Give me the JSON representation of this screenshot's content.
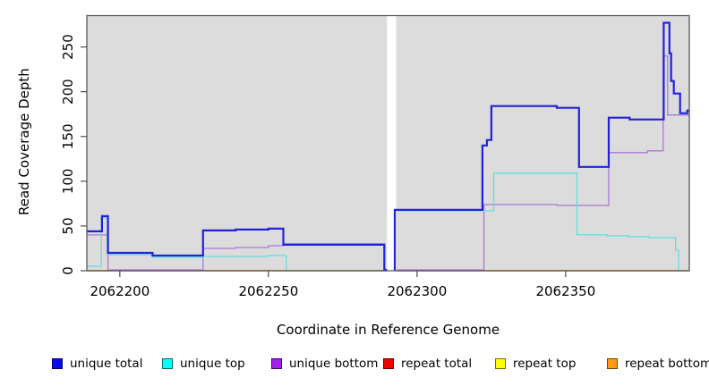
{
  "chart_data": {
    "type": "line",
    "style": "step-coverage-plot",
    "xlabel": "Coordinate in Reference Genome",
    "ylabel": "Read Coverage Depth",
    "xlim": [
      2062188.9,
      2062391.6
    ],
    "ylim": [
      0,
      285
    ],
    "x_ticks": [
      2062200,
      2062250,
      2062300,
      2062350
    ],
    "x_tick_labels": [
      "2062200",
      "2062250",
      "2062300",
      "2062350"
    ],
    "y_ticks": [
      0,
      50,
      100,
      150,
      200,
      250
    ],
    "y_tick_labels": [
      "0",
      "50",
      "100",
      "150",
      "200",
      "250"
    ],
    "grid": false,
    "plot_background": "#DCDCDC",
    "gap_region": {
      "x_start": 2062289.9,
      "x_end": 2062293.0,
      "color": "#FFFFFF"
    },
    "series": [
      {
        "name": "repeat total",
        "color": "#CC3355",
        "width": 1.3,
        "segments": [
          [
            [
              2062188.9,
              0
            ],
            [
              2062289.9,
              0
            ]
          ],
          [
            [
              2062293.1,
              0
            ],
            [
              2062391.6,
              0
            ]
          ]
        ]
      },
      {
        "name": "repeat top",
        "color": "#EEE800",
        "width": 1.3,
        "segments": [
          [
            [
              2062188.9,
              0
            ],
            [
              2062289.9,
              0
            ]
          ],
          [
            [
              2062293.1,
              0
            ],
            [
              2062391.6,
              0
            ]
          ]
        ]
      },
      {
        "name": "repeat bottom",
        "color": "#FF9D20",
        "width": 1.3,
        "segments": [
          [
            [
              2062188.9,
              0
            ],
            [
              2062289.9,
              0
            ]
          ],
          [
            [
              2062293.1,
              0
            ],
            [
              2062391.6,
              0
            ]
          ]
        ]
      },
      {
        "name": "unique bottom",
        "color": "#AA77D8",
        "width": 1.3,
        "segments": [
          [
            [
              2062188.9,
              40
            ],
            [
              2062196,
              40
            ],
            [
              2062196,
              1
            ],
            [
              2062228,
              1
            ],
            [
              2062228,
              25
            ],
            [
              2062239,
              25
            ],
            [
              2062239,
              26
            ],
            [
              2062250,
              26
            ],
            [
              2062250,
              28
            ],
            [
              2062255,
              28
            ],
            [
              2062255,
              30
            ],
            [
              2062289,
              30
            ],
            [
              2062289,
              0
            ],
            [
              2062289.9,
              0
            ]
          ],
          [
            [
              2062293.1,
              1
            ],
            [
              2062322.5,
              1
            ],
            [
              2062322.5,
              74
            ],
            [
              2062347,
              74
            ],
            [
              2062347,
              73
            ],
            [
              2062364.5,
              73
            ],
            [
              2062364.5,
              132
            ],
            [
              2062377.5,
              132
            ],
            [
              2062377.5,
              134
            ],
            [
              2062382.8,
              134
            ],
            [
              2062382.8,
              240
            ],
            [
              2062384.3,
              240
            ],
            [
              2062384.3,
              174
            ],
            [
              2062391.6,
              174
            ]
          ]
        ]
      },
      {
        "name": "unique top",
        "color": "#5FE0E0",
        "width": 1.3,
        "segments": [
          [
            [
              2062188.9,
              5
            ],
            [
              2062193.8,
              5
            ],
            [
              2062193.8,
              59
            ],
            [
              2062195.8,
              59
            ],
            [
              2062195.8,
              18
            ],
            [
              2062211,
              18
            ],
            [
              2062211,
              15
            ],
            [
              2062228,
              15
            ],
            [
              2062228,
              16
            ],
            [
              2062250,
              16
            ],
            [
              2062250,
              17
            ],
            [
              2062256,
              17
            ],
            [
              2062256,
              0
            ],
            [
              2062289.9,
              0
            ]
          ],
          [
            [
              2062292.5,
              67
            ],
            [
              2062325.8,
              67
            ],
            [
              2062325.8,
              109
            ],
            [
              2062353.8,
              109
            ],
            [
              2062353.8,
              40
            ],
            [
              2062364,
              40
            ],
            [
              2062364,
              39
            ],
            [
              2062371,
              39
            ],
            [
              2062371,
              38
            ],
            [
              2062378,
              38
            ],
            [
              2062378,
              37
            ],
            [
              2062387,
              37
            ],
            [
              2062387,
              23
            ],
            [
              2062388,
              23
            ],
            [
              2062388,
              0
            ],
            [
              2062391.6,
              0
            ]
          ]
        ]
      },
      {
        "name": "unique total",
        "color": "#2222DD",
        "width": 2.2,
        "segments": [
          [
            [
              2062188.9,
              44
            ],
            [
              2062194,
              44
            ],
            [
              2062194,
              61
            ],
            [
              2062196,
              61
            ],
            [
              2062196,
              20
            ],
            [
              2062211,
              20
            ],
            [
              2062211,
              17
            ],
            [
              2062228,
              17
            ],
            [
              2062228,
              45
            ],
            [
              2062239,
              45
            ],
            [
              2062239,
              46
            ],
            [
              2062250,
              46
            ],
            [
              2062250,
              47
            ],
            [
              2062255,
              47
            ],
            [
              2062255,
              29
            ],
            [
              2062289,
              29
            ],
            [
              2062289,
              1
            ],
            [
              2062289.9,
              1
            ]
          ],
          [
            [
              2062292.5,
              0
            ],
            [
              2062292.5,
              68
            ],
            [
              2062322,
              68
            ],
            [
              2062322,
              140
            ],
            [
              2062323.5,
              140
            ],
            [
              2062323.5,
              146
            ],
            [
              2062325,
              146
            ],
            [
              2062325,
              184
            ],
            [
              2062347,
              184
            ],
            [
              2062347,
              182
            ],
            [
              2062354.5,
              182
            ],
            [
              2062354.5,
              116
            ],
            [
              2062364.5,
              116
            ],
            [
              2062364.5,
              171
            ],
            [
              2062371.5,
              171
            ],
            [
              2062371.5,
              169
            ],
            [
              2062383,
              169
            ],
            [
              2062383,
              277
            ],
            [
              2062384.9,
              277
            ],
            [
              2062384.9,
              243
            ],
            [
              2062385.5,
              243
            ],
            [
              2062385.5,
              212
            ],
            [
              2062386.4,
              212
            ],
            [
              2062386.4,
              198
            ],
            [
              2062388.5,
              198
            ],
            [
              2062388.5,
              176
            ],
            [
              2062390.9,
              176
            ],
            [
              2062390.9,
              179
            ],
            [
              2062391.6,
              179
            ]
          ]
        ]
      }
    ],
    "legend_position": "bottom"
  },
  "legend": {
    "items": [
      {
        "label": "unique total",
        "color": "#0A0AEE"
      },
      {
        "label": "unique top",
        "color": "#00FFFF"
      },
      {
        "label": "unique bottom",
        "color": "#A020F0"
      },
      {
        "label": "repeat total",
        "color": "#EE0000"
      },
      {
        "label": "repeat top",
        "color": "#FFFF00"
      },
      {
        "label": "repeat bottom",
        "color": "#FF9912"
      }
    ]
  }
}
